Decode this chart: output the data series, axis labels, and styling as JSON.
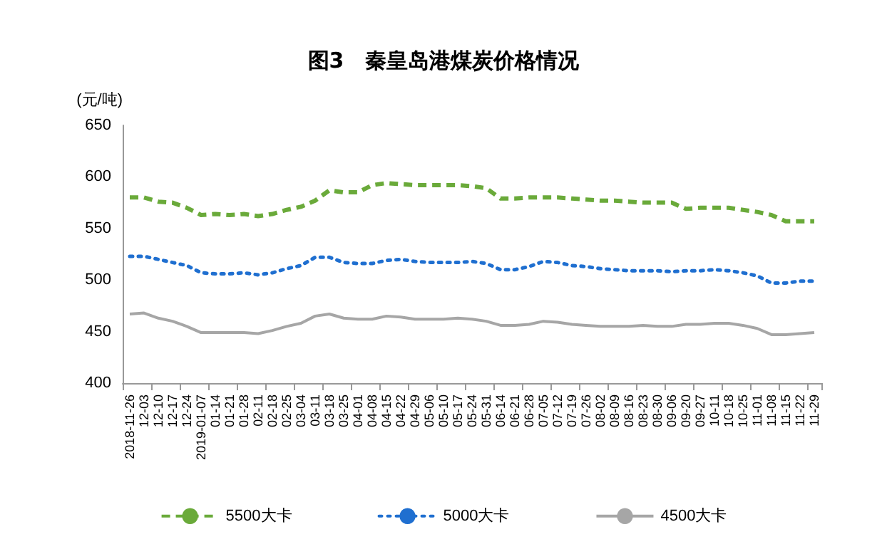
{
  "chart_data": {
    "type": "line",
    "title": "图3　秦皇岛港煤炭价格情况",
    "ylabel": "(元/吨)",
    "categories": [
      "2018-11-26",
      "12-03",
      "12-10",
      "12-17",
      "12-24",
      "2019-01-07",
      "01-14",
      "01-21",
      "01-28",
      "02-11",
      "02-18",
      "02-25",
      "03-04",
      "03-11",
      "03-18",
      "03-25",
      "04-01",
      "04-08",
      "04-15",
      "04-22",
      "04-29",
      "05-06",
      "05-10",
      "05-17",
      "05-24",
      "05-31",
      "06-14",
      "06-21",
      "06-28",
      "07-05",
      "07-12",
      "07-19",
      "07-26",
      "08-02",
      "08-09",
      "08-16",
      "08-23",
      "08-30",
      "09-06",
      "09-20",
      "09-27",
      "10-11",
      "10-18",
      "10-25",
      "11-01",
      "11-08",
      "11-15",
      "11-22",
      "11-29"
    ],
    "series": [
      {
        "name": "5500大卡",
        "color": "#6aaa3a",
        "line_style": "dashed",
        "values": [
          580,
          580,
          576,
          575,
          570,
          563,
          564,
          563,
          564,
          562,
          564,
          568,
          571,
          577,
          587,
          585,
          585,
          592,
          594,
          593,
          592,
          592,
          592,
          592,
          591,
          589,
          579,
          579,
          580,
          580,
          580,
          579,
          578,
          577,
          577,
          576,
          575,
          575,
          575,
          569,
          570,
          570,
          570,
          568,
          566,
          563,
          557,
          557,
          557
        ]
      },
      {
        "name": "5000大卡",
        "color": "#1f6fd0",
        "line_style": "dotted",
        "values": [
          523,
          523,
          520,
          517,
          514,
          507,
          506,
          506,
          507,
          505,
          507,
          511,
          514,
          522,
          522,
          517,
          516,
          516,
          519,
          520,
          518,
          517,
          517,
          517,
          518,
          516,
          510,
          510,
          513,
          518,
          517,
          514,
          513,
          511,
          510,
          509,
          509,
          509,
          508,
          509,
          509,
          510,
          509,
          507,
          504,
          497,
          497,
          499,
          499
        ]
      },
      {
        "name": "4500大卡",
        "color": "#a6a6a6",
        "line_style": "solid",
        "values": [
          467,
          468,
          463,
          460,
          455,
          449,
          449,
          449,
          449,
          448,
          451,
          455,
          458,
          465,
          467,
          463,
          462,
          462,
          465,
          464,
          462,
          462,
          462,
          463,
          462,
          460,
          456,
          456,
          457,
          460,
          459,
          457,
          456,
          455,
          455,
          455,
          456,
          455,
          455,
          457,
          457,
          458,
          458,
          456,
          453,
          447,
          447,
          448,
          449
        ]
      }
    ],
    "ylim": [
      400,
      650
    ],
    "yticks": [
      400,
      450,
      500,
      550,
      600,
      650
    ],
    "grid": false,
    "legend": "bottom",
    "marker": "none"
  }
}
